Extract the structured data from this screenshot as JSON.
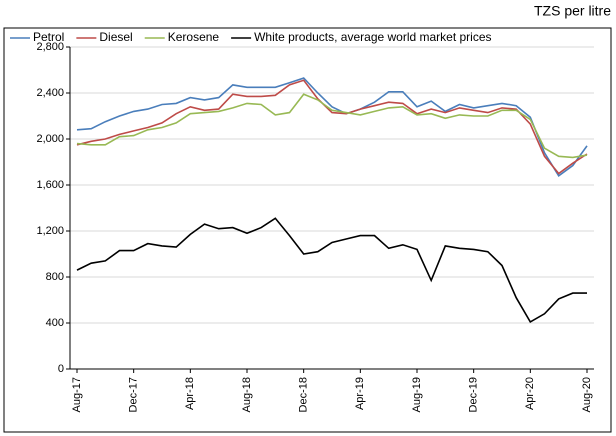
{
  "chart_data": {
    "type": "line",
    "unit_label": "TZS per litre",
    "categories": [
      "Aug-17",
      null,
      null,
      null,
      "Dec-17",
      null,
      null,
      null,
      "Apr-18",
      null,
      null,
      null,
      "Aug-18",
      null,
      null,
      null,
      "Dec-18",
      null,
      null,
      null,
      "Apr-19",
      null,
      null,
      null,
      "Aug-19",
      null,
      null,
      null,
      "Dec-19",
      null,
      null,
      null,
      "Apr-20",
      null,
      null,
      null,
      "Aug-20"
    ],
    "series": [
      {
        "name": "Petrol",
        "color": "#4a7ebb",
        "values": [
          2080,
          2090,
          2150,
          2200,
          2240,
          2260,
          2300,
          2310,
          2360,
          2340,
          2360,
          2470,
          2450,
          2450,
          2450,
          2490,
          2530,
          2400,
          2280,
          2220,
          2260,
          2320,
          2410,
          2410,
          2280,
          2330,
          2240,
          2300,
          2270,
          2290,
          2310,
          2290,
          2190,
          1880,
          1680,
          1770,
          1940
        ]
      },
      {
        "name": "Diesel",
        "color": "#be4b48",
        "values": [
          1950,
          1980,
          2000,
          2040,
          2070,
          2100,
          2140,
          2220,
          2280,
          2250,
          2260,
          2390,
          2370,
          2370,
          2380,
          2470,
          2510,
          2350,
          2230,
          2220,
          2260,
          2290,
          2320,
          2310,
          2220,
          2260,
          2230,
          2270,
          2250,
          2230,
          2270,
          2260,
          2130,
          1850,
          1700,
          1790,
          1870
        ]
      },
      {
        "name": "Kerosene",
        "color": "#98b954",
        "values": [
          1960,
          1950,
          1950,
          2020,
          2030,
          2080,
          2100,
          2140,
          2220,
          2230,
          2240,
          2270,
          2310,
          2300,
          2210,
          2230,
          2390,
          2340,
          2250,
          2230,
          2210,
          2240,
          2270,
          2280,
          2210,
          2220,
          2180,
          2210,
          2200,
          2200,
          2250,
          2250,
          2170,
          1920,
          1850,
          1840,
          1860
        ]
      },
      {
        "name": "White products, average world market prices",
        "color": "#000000",
        "values": [
          860,
          920,
          940,
          1030,
          1030,
          1090,
          1070,
          1060,
          1170,
          1260,
          1220,
          1230,
          1180,
          1230,
          1310,
          1160,
          1000,
          1020,
          1100,
          1130,
          1160,
          1160,
          1050,
          1080,
          1040,
          770,
          1070,
          1050,
          1040,
          1020,
          900,
          620,
          410,
          480,
          610,
          660,
          660
        ]
      }
    ],
    "ylim": [
      0,
      2800
    ],
    "yticks": [
      0,
      400,
      800,
      {
        "value": 1200,
        "label": "1,200"
      },
      {
        "value": 1600,
        "label": "1,600"
      },
      {
        "value": 2000,
        "label": "2,000"
      },
      {
        "value": 2400,
        "label": "2,400"
      },
      {
        "value": 2800,
        "label": "2,800"
      }
    ],
    "grid": true,
    "legend": "top"
  }
}
